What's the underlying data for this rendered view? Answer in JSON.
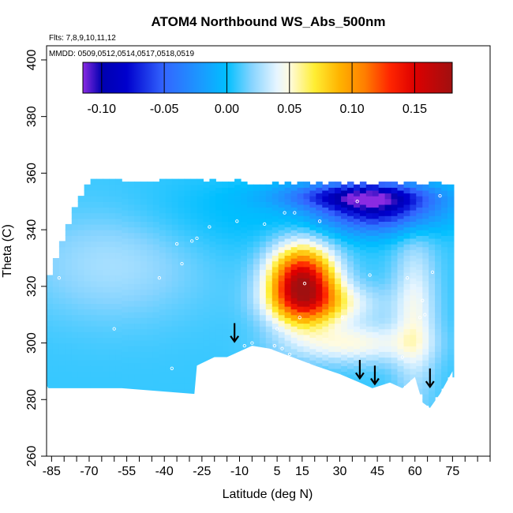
{
  "chart_data": {
    "type": "heatmap",
    "title": "ATOM4 Northbound WS_Abs_500nm",
    "subtitle_flights": "Flts: 7,8,9,10,11,12",
    "subtitle_dates": "MMDD: 0509,0512,0514,0517,0518,0519",
    "xlabel": "Latitude (deg N)",
    "ylabel": "Theta (C)",
    "xlim": [
      -87,
      90
    ],
    "ylim": [
      260,
      405
    ],
    "x_tick_labels": [
      "-85",
      "-70",
      "-55",
      "-40",
      "-25",
      "-10",
      "5",
      "15",
      "30",
      "45",
      "60",
      "75"
    ],
    "x_ticks": [
      -85,
      -70,
      -55,
      -40,
      -25,
      -10,
      5,
      15,
      30,
      45,
      60,
      75
    ],
    "x_minor_ticks": [
      -85,
      -80,
      -75,
      -70,
      -65,
      -60,
      -55,
      -50,
      -45,
      -40,
      -35,
      -30,
      -25,
      -20,
      -15,
      -10,
      -5,
      0,
      5,
      10,
      15,
      20,
      25,
      30,
      35,
      40,
      45,
      50,
      55,
      60,
      65,
      70,
      75,
      80,
      85,
      90
    ],
    "y_tick_labels": [
      "260",
      "280",
      "300",
      "320",
      "340",
      "360",
      "380",
      "400"
    ],
    "y_ticks": [
      260,
      280,
      300,
      320,
      340,
      360,
      380,
      400
    ],
    "colorbar": {
      "range": [
        -0.115,
        0.18
      ],
      "tick_labels": [
        "-0.10",
        "-0.05",
        "0.00",
        "0.05",
        "0.10",
        "0.15"
      ],
      "ticks": [
        -0.1,
        -0.05,
        0.0,
        0.05,
        0.1,
        0.15
      ],
      "stops": [
        {
          "v": -0.115,
          "color": "#8a2be2"
        },
        {
          "v": -0.1,
          "color": "#0000b0"
        },
        {
          "v": -0.08,
          "color": "#0000cd"
        },
        {
          "v": -0.05,
          "color": "#3366ff"
        },
        {
          "v": -0.02,
          "color": "#1a9bff"
        },
        {
          "v": 0.0,
          "color": "#00bfff"
        },
        {
          "v": 0.02,
          "color": "#87d4ff"
        },
        {
          "v": 0.04,
          "color": "#e6f5ff"
        },
        {
          "v": 0.05,
          "color": "#fffbe0"
        },
        {
          "v": 0.07,
          "color": "#ffee33"
        },
        {
          "v": 0.09,
          "color": "#ffb300"
        },
        {
          "v": 0.11,
          "color": "#ff7f00"
        },
        {
          "v": 0.13,
          "color": "#ff2600"
        },
        {
          "v": 0.15,
          "color": "#dd0000"
        },
        {
          "v": 0.18,
          "color": "#a01010"
        }
      ]
    },
    "field_bounds": {
      "lat": [
        -87,
        75
      ],
      "theta_top": [
        357,
        355
      ],
      "floor": [
        [
          -87,
          284
        ],
        [
          -57,
          284
        ],
        [
          -28,
          282
        ],
        [
          -27,
          292
        ],
        [
          -20,
          295
        ],
        [
          -15,
          295
        ],
        [
          -5,
          299
        ],
        [
          2,
          298
        ],
        [
          8,
          296
        ],
        [
          20,
          292
        ],
        [
          30,
          289
        ],
        [
          38,
          286
        ],
        [
          43,
          284
        ],
        [
          50,
          286
        ],
        [
          55,
          284
        ],
        [
          60,
          288
        ],
        [
          63,
          279
        ],
        [
          66,
          277
        ],
        [
          70,
          282
        ],
        [
          75,
          290
        ]
      ]
    },
    "field_features": [
      {
        "lat": -20,
        "theta": 345,
        "value": -0.01,
        "sx": 40,
        "sy": 10
      },
      {
        "lat": 45,
        "theta": 348,
        "value": -0.09,
        "sx": 17,
        "sy": 6
      },
      {
        "lat": 35,
        "theta": 352,
        "value": -0.06,
        "sx": 20,
        "sy": 3
      },
      {
        "lat": 15,
        "theta": 321,
        "value": 0.165,
        "sx": 9,
        "sy": 9
      },
      {
        "lat": 25,
        "theta": 314,
        "value": 0.04,
        "sx": 15,
        "sy": 5
      },
      {
        "lat": 35,
        "theta": 300,
        "value": 0.04,
        "sx": 18,
        "sy": 5
      },
      {
        "lat": -60,
        "theta": 330,
        "value": 0.02,
        "sx": 25,
        "sy": 15
      },
      {
        "lat": 60,
        "theta": 310,
        "value": 0.035,
        "sx": 6,
        "sy": 20
      }
    ],
    "sample_points": [
      {
        "lat": -87,
        "theta": 284
      },
      {
        "lat": -82,
        "theta": 323
      },
      {
        "lat": -60,
        "theta": 305
      },
      {
        "lat": -42,
        "theta": 323
      },
      {
        "lat": -37,
        "theta": 291
      },
      {
        "lat": -35,
        "theta": 335
      },
      {
        "lat": -33,
        "theta": 328
      },
      {
        "lat": -29,
        "theta": 336
      },
      {
        "lat": -27,
        "theta": 337
      },
      {
        "lat": -22,
        "theta": 341
      },
      {
        "lat": -11,
        "theta": 343
      },
      {
        "lat": -8,
        "theta": 299
      },
      {
        "lat": -5,
        "theta": 300
      },
      {
        "lat": 0,
        "theta": 342
      },
      {
        "lat": 4,
        "theta": 299
      },
      {
        "lat": 5,
        "theta": 305
      },
      {
        "lat": 7,
        "theta": 298
      },
      {
        "lat": 8,
        "theta": 346
      },
      {
        "lat": 10,
        "theta": 296
      },
      {
        "lat": 12,
        "theta": 346
      },
      {
        "lat": 14,
        "theta": 309
      },
      {
        "lat": 16,
        "theta": 321
      },
      {
        "lat": 22,
        "theta": 343
      },
      {
        "lat": 31,
        "theta": 309
      },
      {
        "lat": 37,
        "theta": 350
      },
      {
        "lat": 42,
        "theta": 324
      },
      {
        "lat": 55,
        "theta": 295
      },
      {
        "lat": 57,
        "theta": 323
      },
      {
        "lat": 62,
        "theta": 309
      },
      {
        "lat": 63,
        "theta": 315
      },
      {
        "lat": 64,
        "theta": 310
      },
      {
        "lat": 67,
        "theta": 325
      },
      {
        "lat": 70,
        "theta": 352
      }
    ],
    "arrows": [
      {
        "lat": -12,
        "theta": 302
      },
      {
        "lat": 38,
        "theta": 289
      },
      {
        "lat": 44,
        "theta": 287
      },
      {
        "lat": 66,
        "theta": 286
      }
    ]
  }
}
